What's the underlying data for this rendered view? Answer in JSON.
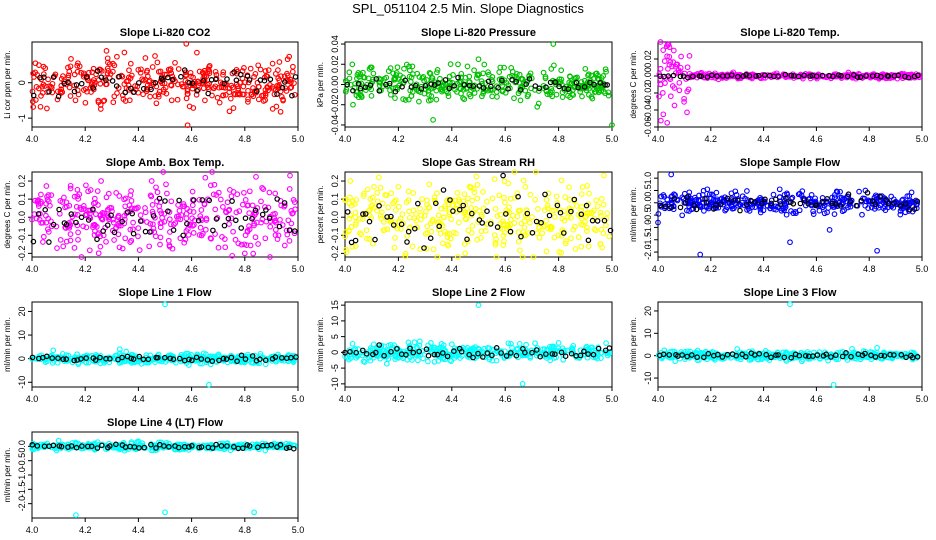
{
  "page": {
    "title": "SPL_051104  2.5 Min. Slope Diagnostics"
  },
  "chart_data": [
    {
      "type": "scatter",
      "title": "Slope Li-820 CO2",
      "ylabel": "Li cor ppm per min.",
      "xlabel": "",
      "color": "#ff0000",
      "xlim": [
        4.0,
        5.0
      ],
      "ylim": [
        -1.25,
        1.15
      ],
      "x_ticks": [
        4.0,
        4.2,
        4.4,
        4.6,
        4.8,
        5.0
      ],
      "y_ticks": [
        -1,
        0
      ],
      "spread": 0.32,
      "black_spread": 0.18,
      "outliers": [
        [
          4.585,
          -1.2
        ],
        [
          4.58,
          1.1
        ],
        [
          4.28,
          0.9
        ],
        [
          4.62,
          0.85
        ],
        [
          4.25,
          -0.55
        ],
        [
          4.65,
          -0.5
        ]
      ],
      "series": [
        {
          "name": "slope",
          "color": "#ff0000"
        },
        {
          "name": "baseline",
          "color": "#000000"
        }
      ]
    },
    {
      "type": "scatter",
      "title": "Slope Li-820 Pressure",
      "ylabel": "kPa per min.",
      "xlabel": "",
      "color": "#00c000",
      "xlim": [
        4.0,
        5.0
      ],
      "ylim": [
        -0.042,
        0.042
      ],
      "x_ticks": [
        4.0,
        4.2,
        4.4,
        4.6,
        4.8,
        5.0
      ],
      "y_ticks": [
        -0.04,
        -0.02,
        0.0,
        0.02,
        0.04
      ],
      "spread": 0.008,
      "black_spread": 0.003,
      "outliers": [
        [
          4.78,
          0.04
        ],
        [
          4.33,
          -0.035
        ],
        [
          5.0,
          -0.04
        ],
        [
          4.5,
          0.025
        ],
        [
          4.03,
          -0.02
        ],
        [
          4.72,
          -0.022
        ]
      ],
      "series": [
        {
          "name": "slope",
          "color": "#00c000"
        },
        {
          "name": "baseline",
          "color": "#000000"
        }
      ]
    },
    {
      "type": "scatter",
      "title": "Slope Li-820 Temp.",
      "ylabel": "degrees C per min.",
      "xlabel": "",
      "color": "#ff00ff",
      "xlim": [
        4.0,
        5.0
      ],
      "ylim": [
        -0.06,
        0.04
      ],
      "x_ticks": [
        4.0,
        4.2,
        4.4,
        4.6,
        4.8,
        5.0
      ],
      "y_ticks": [
        -0.06,
        -0.04,
        -0.02,
        0.0,
        0.02
      ],
      "spread": 0.0015,
      "black_spread": 0.0008,
      "early_spread": 0.022,
      "early_until": 4.12,
      "outliers": [
        [
          4.04,
          0.037
        ],
        [
          4.035,
          -0.055
        ],
        [
          4.06,
          0.03
        ],
        [
          4.02,
          -0.045
        ]
      ],
      "series": [
        {
          "name": "slope",
          "color": "#ff00ff"
        },
        {
          "name": "baseline",
          "color": "#000000"
        }
      ]
    },
    {
      "type": "scatter",
      "title": "Slope Amb. Box Temp.",
      "ylabel": "degrees C per min.",
      "xlabel": "",
      "color": "#ff00ff",
      "xlim": [
        4.0,
        5.0
      ],
      "ylim": [
        -0.22,
        0.25
      ],
      "x_ticks": [
        4.0,
        4.2,
        4.4,
        4.6,
        4.8,
        5.0
      ],
      "y_ticks": [
        -0.2,
        -0.1,
        0.0,
        0.1,
        0.2
      ],
      "spread": 0.09,
      "black_spread": 0.06,
      "outliers": [
        [
          4.97,
          0.23
        ],
        [
          4.45,
          0.2
        ],
        [
          4.8,
          -0.2
        ]
      ],
      "series": [
        {
          "name": "slope",
          "color": "#ff00ff"
        },
        {
          "name": "baseline",
          "color": "#000000"
        }
      ]
    },
    {
      "type": "scatter",
      "title": "Slope Gas Stream RH",
      "ylabel": "percent per min.",
      "xlabel": "",
      "color": "#ffff00",
      "xlim": [
        4.0,
        5.0
      ],
      "ylim": [
        -0.22,
        0.25
      ],
      "x_ticks": [
        4.0,
        4.2,
        4.4,
        4.6,
        4.8,
        5.0
      ],
      "y_ticks": [
        -0.2,
        -0.1,
        0.0,
        0.1,
        0.2
      ],
      "spread": 0.1,
      "black_spread": 0.08,
      "outliers": [
        [
          4.56,
          0.21
        ],
        [
          4.02,
          0.2
        ],
        [
          4.45,
          -0.2
        ]
      ],
      "series": [
        {
          "name": "slope",
          "color": "#ffff00"
        },
        {
          "name": "baseline",
          "color": "#000000"
        }
      ]
    },
    {
      "type": "scatter",
      "title": "Slope Sample Flow",
      "ylabel": "ml/min per min.",
      "xlabel": "",
      "color": "#0000ff",
      "xlim": [
        4.0,
        5.0
      ],
      "ylim": [
        -2.2,
        1.25
      ],
      "x_ticks": [
        4.0,
        4.2,
        4.4,
        4.6,
        4.8,
        5.0
      ],
      "y_ticks": [
        -2.0,
        -1.5,
        -1.0,
        -0.5,
        0.0,
        0.5,
        1.0
      ],
      "spread": 0.22,
      "black_spread": 0.15,
      "outliers": [
        [
          4.16,
          -2.1
        ],
        [
          4.83,
          -1.95
        ],
        [
          4.65,
          -1.1
        ],
        [
          4.5,
          -1.6
        ],
        [
          4.05,
          1.15
        ],
        [
          4.0,
          -0.8
        ]
      ],
      "series": [
        {
          "name": "slope",
          "color": "#0000ff"
        },
        {
          "name": "baseline",
          "color": "#000000"
        }
      ]
    },
    {
      "type": "scatter",
      "title": "Slope Line 1 Flow",
      "ylabel": "ml/min per min.",
      "xlabel": "",
      "color": "#00ffff",
      "xlim": [
        4.0,
        5.0
      ],
      "ylim": [
        -12,
        24
      ],
      "x_ticks": [
        4.0,
        4.2,
        4.4,
        4.6,
        4.8,
        5.0
      ],
      "y_ticks": [
        -10,
        0,
        10,
        20
      ],
      "spread": 1.0,
      "black_spread": 0.6,
      "outliers": [
        [
          4.5,
          23
        ],
        [
          4.665,
          -11
        ],
        [
          4.08,
          3.5
        ],
        [
          4.33,
          4.0
        ]
      ],
      "series": [
        {
          "name": "slope",
          "color": "#00ffff"
        },
        {
          "name": "baseline",
          "color": "#000000"
        }
      ]
    },
    {
      "type": "scatter",
      "title": "Slope Line 2 Flow",
      "ylabel": "ml/min per min.",
      "xlabel": "",
      "color": "#00ffff",
      "xlim": [
        4.0,
        5.0
      ],
      "ylim": [
        -11,
        16
      ],
      "x_ticks": [
        4.0,
        4.2,
        4.4,
        4.6,
        4.8,
        5.0
      ],
      "y_ticks": [
        -10,
        -5,
        0,
        5,
        10,
        15
      ],
      "spread": 1.3,
      "black_spread": 0.8,
      "outliers": [
        [
          4.5,
          15
        ],
        [
          4.665,
          -10
        ],
        [
          4.28,
          3.5
        ],
        [
          4.8,
          3.0
        ]
      ],
      "series": [
        {
          "name": "slope",
          "color": "#00ffff"
        },
        {
          "name": "baseline",
          "color": "#000000"
        }
      ]
    },
    {
      "type": "scatter",
      "title": "Slope Line 3 Flow",
      "ylabel": "ml/min per min.",
      "xlabel": "",
      "color": "#00ffff",
      "xlim": [
        4.0,
        5.0
      ],
      "ylim": [
        -14,
        24
      ],
      "x_ticks": [
        4.0,
        4.2,
        4.4,
        4.6,
        4.8,
        5.0
      ],
      "y_ticks": [
        -10,
        0,
        10,
        20
      ],
      "spread": 1.0,
      "black_spread": 0.6,
      "outliers": [
        [
          4.5,
          23
        ],
        [
          4.665,
          -13
        ],
        [
          4.83,
          3.5
        ],
        [
          4.3,
          3.0
        ]
      ],
      "series": [
        {
          "name": "slope",
          "color": "#00ffff"
        },
        {
          "name": "baseline",
          "color": "#000000"
        }
      ]
    },
    {
      "type": "scatter",
      "title": "Slope Line 4 (LT) Flow",
      "ylabel": "ml/min per min.",
      "xlabel": "",
      "color": "#00ffff",
      "xlim": [
        4.0,
        5.0
      ],
      "ylim": [
        -2.5,
        0.5
      ],
      "x_ticks": [
        4.0,
        4.2,
        4.4,
        4.6,
        4.8,
        5.0
      ],
      "y_ticks": [
        -2.0,
        -1.5,
        -1.0,
        -0.5,
        0.0
      ],
      "spread": 0.06,
      "black_spread": 0.04,
      "outliers": [
        [
          4.165,
          -2.4
        ],
        [
          4.5,
          -2.3
        ],
        [
          4.835,
          -2.3
        ],
        [
          4.1,
          0.2
        ]
      ],
      "series": [
        {
          "name": "slope",
          "color": "#00ffff"
        },
        {
          "name": "baseline",
          "color": "#000000"
        }
      ]
    }
  ]
}
